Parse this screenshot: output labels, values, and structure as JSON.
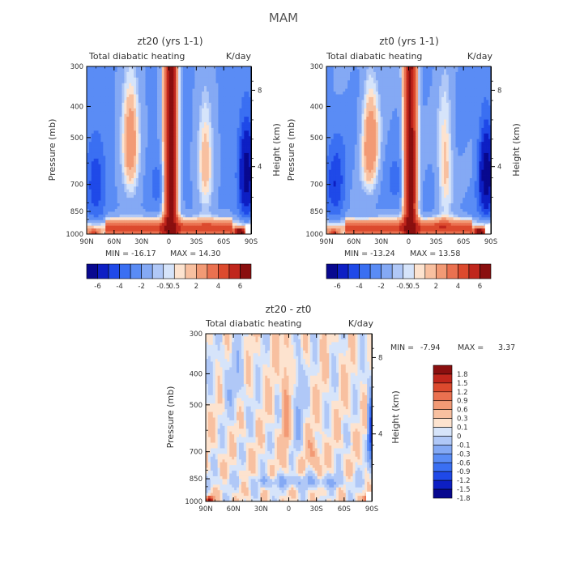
{
  "figure": {
    "title": "MAM"
  },
  "colors": {
    "levels": [
      "#08088f",
      "#0d1fc4",
      "#1f49e8",
      "#3a6ff2",
      "#5a8cf5",
      "#84a9f4",
      "#b0c8f7",
      "#d6e4fa",
      "#fde3cf",
      "#f8c0a0",
      "#f29a75",
      "#ea7150",
      "#dc4a2e",
      "#c0261c",
      "#8a0f0f"
    ],
    "frame": "#000000"
  },
  "chart_data": [
    {
      "type": "heatmap",
      "panel": "zt20",
      "title": "zt20 (yrs 1-1)",
      "left_title": "Total diabatic heating",
      "units": "K/day",
      "xlabel": "",
      "ylabel": "Pressure (mb)",
      "ylabel_right": "Height (km)",
      "x_ticks": [
        "90N",
        "60N",
        "30N",
        "0",
        "30S",
        "60S",
        "90S"
      ],
      "y_ticks": [
        "300",
        "400",
        "500",
        "700",
        "850",
        "1000"
      ],
      "y_right_ticks": [
        "8",
        "4"
      ],
      "min_text": "MIN = -16.17",
      "max_text": "MAX = 14.30",
      "min": -16.17,
      "max": 14.3,
      "colorbar_labels": [
        "-6",
        "-4",
        "-2",
        "-0.5",
        "0.5",
        "2",
        "4",
        "6"
      ]
    },
    {
      "type": "heatmap",
      "panel": "zt0",
      "title": "zt0 (yrs 1-1)",
      "left_title": "Total diabatic heating",
      "units": "K/day",
      "xlabel": "",
      "ylabel": "Pressure (mb)",
      "ylabel_right": "Height (km)",
      "x_ticks": [
        "90N",
        "60N",
        "30N",
        "0",
        "30S",
        "60S",
        "90S"
      ],
      "y_ticks": [
        "300",
        "400",
        "500",
        "700",
        "850",
        "1000"
      ],
      "y_right_ticks": [
        "8",
        "4"
      ],
      "min_text": "MIN = -13.24",
      "max_text": "MAX = 13.58",
      "min": -13.24,
      "max": 13.58,
      "colorbar_labels": [
        "-6",
        "-4",
        "-2",
        "-0.5",
        "0.5",
        "2",
        "4",
        "6"
      ]
    },
    {
      "type": "heatmap",
      "panel": "diff",
      "title": "zt20 - zt0",
      "left_title": "Total diabatic heating",
      "units": "K/day",
      "xlabel": "",
      "ylabel": "Pressure (mb)",
      "ylabel_right": "Height (km)",
      "x_ticks": [
        "90N",
        "60N",
        "30N",
        "0",
        "30S",
        "60S",
        "90S"
      ],
      "y_ticks": [
        "300",
        "400",
        "500",
        "700",
        "850",
        "1000"
      ],
      "y_right_ticks": [
        "8",
        "4"
      ],
      "min_text": "MIN =",
      "max_text": "MAX =",
      "min_value_text": "-7.94",
      "max_value_text": "3.37",
      "min": -7.94,
      "max": 3.37,
      "colorbar_labels": [
        "1.8",
        "1.5",
        "1.2",
        "0.9",
        "0.6",
        "0.3",
        "0.1",
        "0",
        "-0.1",
        "-0.3",
        "-0.6",
        "-0.9",
        "-1.2",
        "-1.5",
        "-1.8"
      ]
    }
  ]
}
